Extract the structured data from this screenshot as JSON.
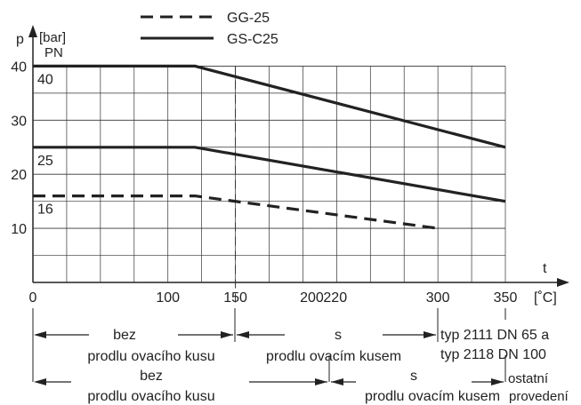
{
  "chart_data": {
    "type": "line",
    "axis": {
      "y_symbol": "p",
      "y_unit": "[bar]",
      "y_sub": "PN",
      "x_symbol": "t",
      "x_unit": "[˚C]",
      "y_range": [
        0,
        45
      ],
      "x_range": [
        0,
        360
      ],
      "y_ticks": [
        10,
        20,
        30,
        40
      ],
      "x_ticks": [
        {
          "value": 0,
          "label": "0"
        },
        {
          "value": 100,
          "label": "100"
        },
        {
          "value": 150,
          "label": "150"
        },
        {
          "value": 200,
          "label": "200"
        },
        {
          "value": 220,
          "label": "220"
        },
        {
          "value": 300,
          "label": "300"
        },
        {
          "value": 350,
          "label": "350"
        }
      ],
      "grid": true
    },
    "legend": [
      {
        "label": "GG-25",
        "style": "dashed"
      },
      {
        "label": "GS-C25",
        "style": "solid"
      }
    ],
    "series": [
      {
        "name": "GS-C25",
        "pn": "40",
        "style": "solid",
        "points": [
          [
            0,
            40
          ],
          [
            120,
            40
          ],
          [
            350,
            25
          ]
        ]
      },
      {
        "name": "GS-C25",
        "pn": "25",
        "style": "solid",
        "points": [
          [
            0,
            25
          ],
          [
            120,
            25
          ],
          [
            350,
            15
          ]
        ]
      },
      {
        "name": "GG-25",
        "pn": "16",
        "style": "dashed",
        "points": [
          [
            0,
            16
          ],
          [
            120,
            16
          ],
          [
            300,
            10
          ]
        ]
      }
    ],
    "reference_line": {
      "x": 150,
      "style": "dashed-thin"
    }
  },
  "annotations": {
    "row1_left_a": "bez",
    "row1_left_b": "prodlu  ovacího kusu",
    "row1_right_a": "s",
    "row1_right_b": "prodlu  ovacím kusem",
    "typ1": "typ 2111  DN 65 a",
    "typ2": "typ 2118  DN 100",
    "row2_left_a": "bez",
    "row2_left_b": "prodlu  ovacího kusu",
    "row2_right_a": "s",
    "row2_right_b": "prodlu  ovacím kusem",
    "other_a": "ostatní",
    "other_b": "provedení"
  }
}
